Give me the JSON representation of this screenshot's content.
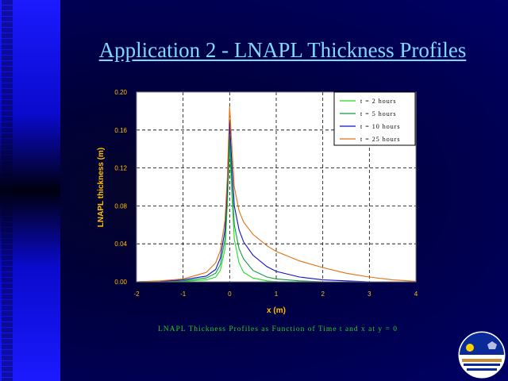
{
  "slide": {
    "title": "Application 2 - LNAPL Thickness Profiles",
    "caption": "LNAPL Thickness Profiles as Function of Time t and x at y = 0"
  },
  "colors": {
    "t2": "#22dd22",
    "t5": "#119944",
    "t10": "#1010cc",
    "t25": "#e07010",
    "axis_text": "#ffc000"
  },
  "logo": {
    "name": "university-seal-icon"
  },
  "chart_data": {
    "type": "line",
    "title": "",
    "xlabel": "x (m)",
    "ylabel": "LNAPL thickness (m)",
    "xlim": [
      -2,
      4
    ],
    "ylim": [
      0,
      0.2
    ],
    "x_ticks": [
      "-2",
      "-1",
      "0",
      "1",
      "2",
      "3",
      "4"
    ],
    "y_ticks": [
      "0.00",
      "0.04",
      "0.08",
      "0.12",
      "0.16",
      "0.20"
    ],
    "grid": true,
    "legend_position": "top-right",
    "series": [
      {
        "name": "t = 2 hours",
        "color": "#22dd22",
        "points": [
          [
            -2,
            0
          ],
          [
            -1,
            0.0005
          ],
          [
            -0.5,
            0.002
          ],
          [
            -0.3,
            0.005
          ],
          [
            -0.2,
            0.012
          ],
          [
            -0.1,
            0.035
          ],
          [
            -0.05,
            0.08
          ],
          [
            0,
            0.143
          ],
          [
            0.05,
            0.09
          ],
          [
            0.1,
            0.045
          ],
          [
            0.2,
            0.02
          ],
          [
            0.3,
            0.01
          ],
          [
            0.5,
            0.004
          ],
          [
            0.8,
            0.001
          ],
          [
            1,
            0.0002
          ],
          [
            2,
            0
          ],
          [
            4,
            0
          ]
        ]
      },
      {
        "name": "t = 5 hours",
        "color": "#119944",
        "points": [
          [
            -2,
            0
          ],
          [
            -1,
            0.001
          ],
          [
            -0.5,
            0.004
          ],
          [
            -0.3,
            0.009
          ],
          [
            -0.2,
            0.018
          ],
          [
            -0.1,
            0.045
          ],
          [
            -0.05,
            0.09
          ],
          [
            0,
            0.155
          ],
          [
            0.05,
            0.1
          ],
          [
            0.1,
            0.06
          ],
          [
            0.2,
            0.035
          ],
          [
            0.3,
            0.024
          ],
          [
            0.5,
            0.012
          ],
          [
            0.8,
            0.005
          ],
          [
            1,
            0.003
          ],
          [
            1.5,
            0.001
          ],
          [
            2,
            0
          ],
          [
            4,
            0
          ]
        ]
      },
      {
        "name": "t = 10 hours",
        "color": "#1010cc",
        "points": [
          [
            -2,
            0
          ],
          [
            -1.5,
            0.0005
          ],
          [
            -1,
            0.002
          ],
          [
            -0.5,
            0.006
          ],
          [
            -0.3,
            0.013
          ],
          [
            -0.2,
            0.025
          ],
          [
            -0.1,
            0.055
          ],
          [
            -0.05,
            0.1
          ],
          [
            0,
            0.168
          ],
          [
            0.05,
            0.12
          ],
          [
            0.1,
            0.08
          ],
          [
            0.2,
            0.055
          ],
          [
            0.3,
            0.042
          ],
          [
            0.5,
            0.028
          ],
          [
            0.8,
            0.016
          ],
          [
            1,
            0.011
          ],
          [
            1.5,
            0.005
          ],
          [
            2,
            0.002
          ],
          [
            2.5,
            0.001
          ],
          [
            3,
            0
          ],
          [
            4,
            0
          ]
        ]
      },
      {
        "name": "t = 25 hours",
        "color": "#e07010",
        "points": [
          [
            -2,
            0
          ],
          [
            -1.5,
            0.001
          ],
          [
            -1,
            0.003
          ],
          [
            -0.5,
            0.01
          ],
          [
            -0.3,
            0.02
          ],
          [
            -0.2,
            0.033
          ],
          [
            -0.1,
            0.065
          ],
          [
            -0.05,
            0.11
          ],
          [
            0,
            0.185
          ],
          [
            0.05,
            0.14
          ],
          [
            0.1,
            0.1
          ],
          [
            0.2,
            0.075
          ],
          [
            0.3,
            0.063
          ],
          [
            0.5,
            0.05
          ],
          [
            0.8,
            0.038
          ],
          [
            1,
            0.032
          ],
          [
            1.5,
            0.022
          ],
          [
            2,
            0.015
          ],
          [
            2.5,
            0.009
          ],
          [
            3,
            0.005
          ],
          [
            3.5,
            0.002
          ],
          [
            4,
            0.0005
          ]
        ]
      }
    ]
  }
}
